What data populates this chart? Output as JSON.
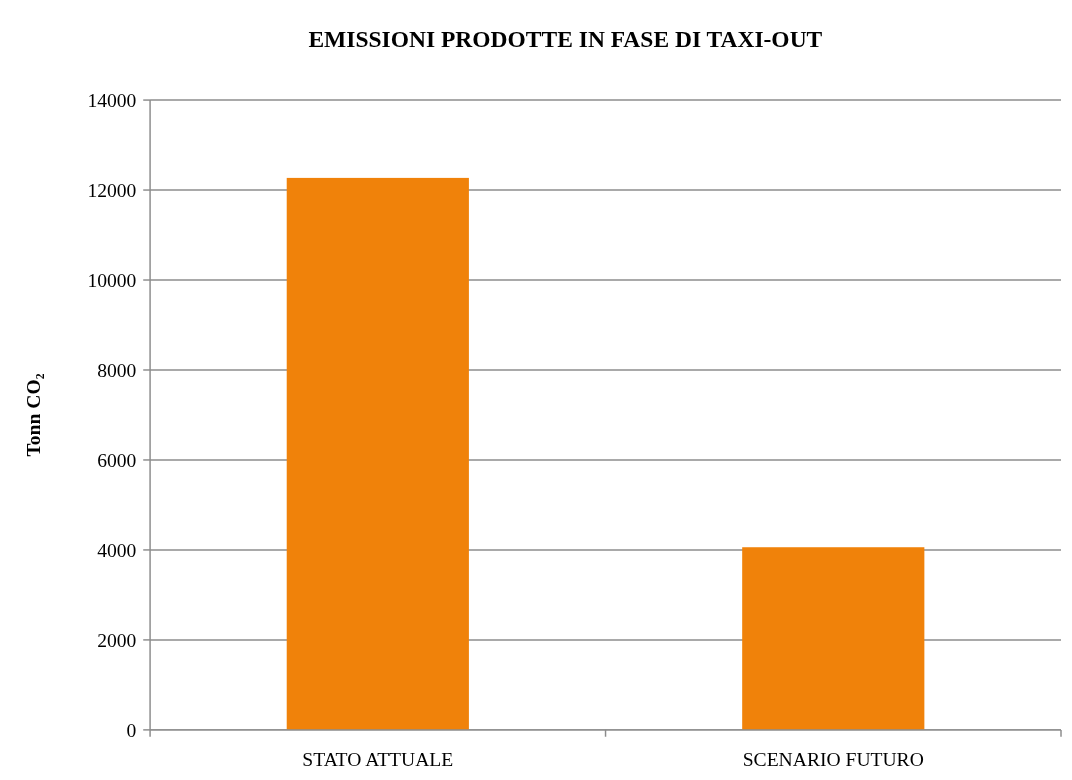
{
  "chart_data": {
    "type": "bar",
    "title": "EMISSIONI  PRODOTTE IN FASE DI TAXI-OUT",
    "ylabel": "Tonn CO₂",
    "categories": [
      "STATO ATTUALE",
      "SCENARIO FUTURO"
    ],
    "values": [
      12270,
      4060
    ],
    "color": "#f0820a",
    "ylim": [
      0,
      14000
    ],
    "yticks": [
      0,
      2000,
      4000,
      6000,
      8000,
      10000,
      12000,
      14000
    ],
    "grid": "y"
  }
}
